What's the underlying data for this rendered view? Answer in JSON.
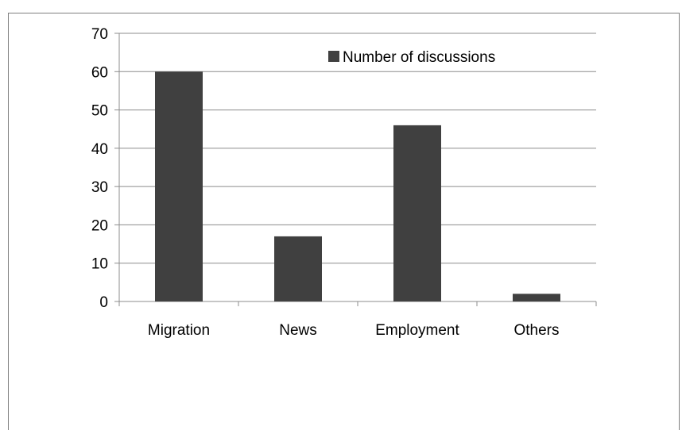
{
  "chart_data": {
    "type": "bar",
    "categories": [
      "Migration",
      "News",
      "Employment",
      "Others"
    ],
    "series": [
      {
        "name": "Number of discussions",
        "values": [
          60,
          17,
          46,
          2
        ]
      }
    ],
    "ylim": [
      0,
      70
    ],
    "yticks": [
      0,
      10,
      20,
      30,
      40,
      50,
      60,
      70
    ],
    "grid": true,
    "legend_position": "top-right",
    "colors": {
      "bar": "#404040",
      "grid": "#8c8c8c",
      "axis": "#8c8c8c"
    }
  }
}
